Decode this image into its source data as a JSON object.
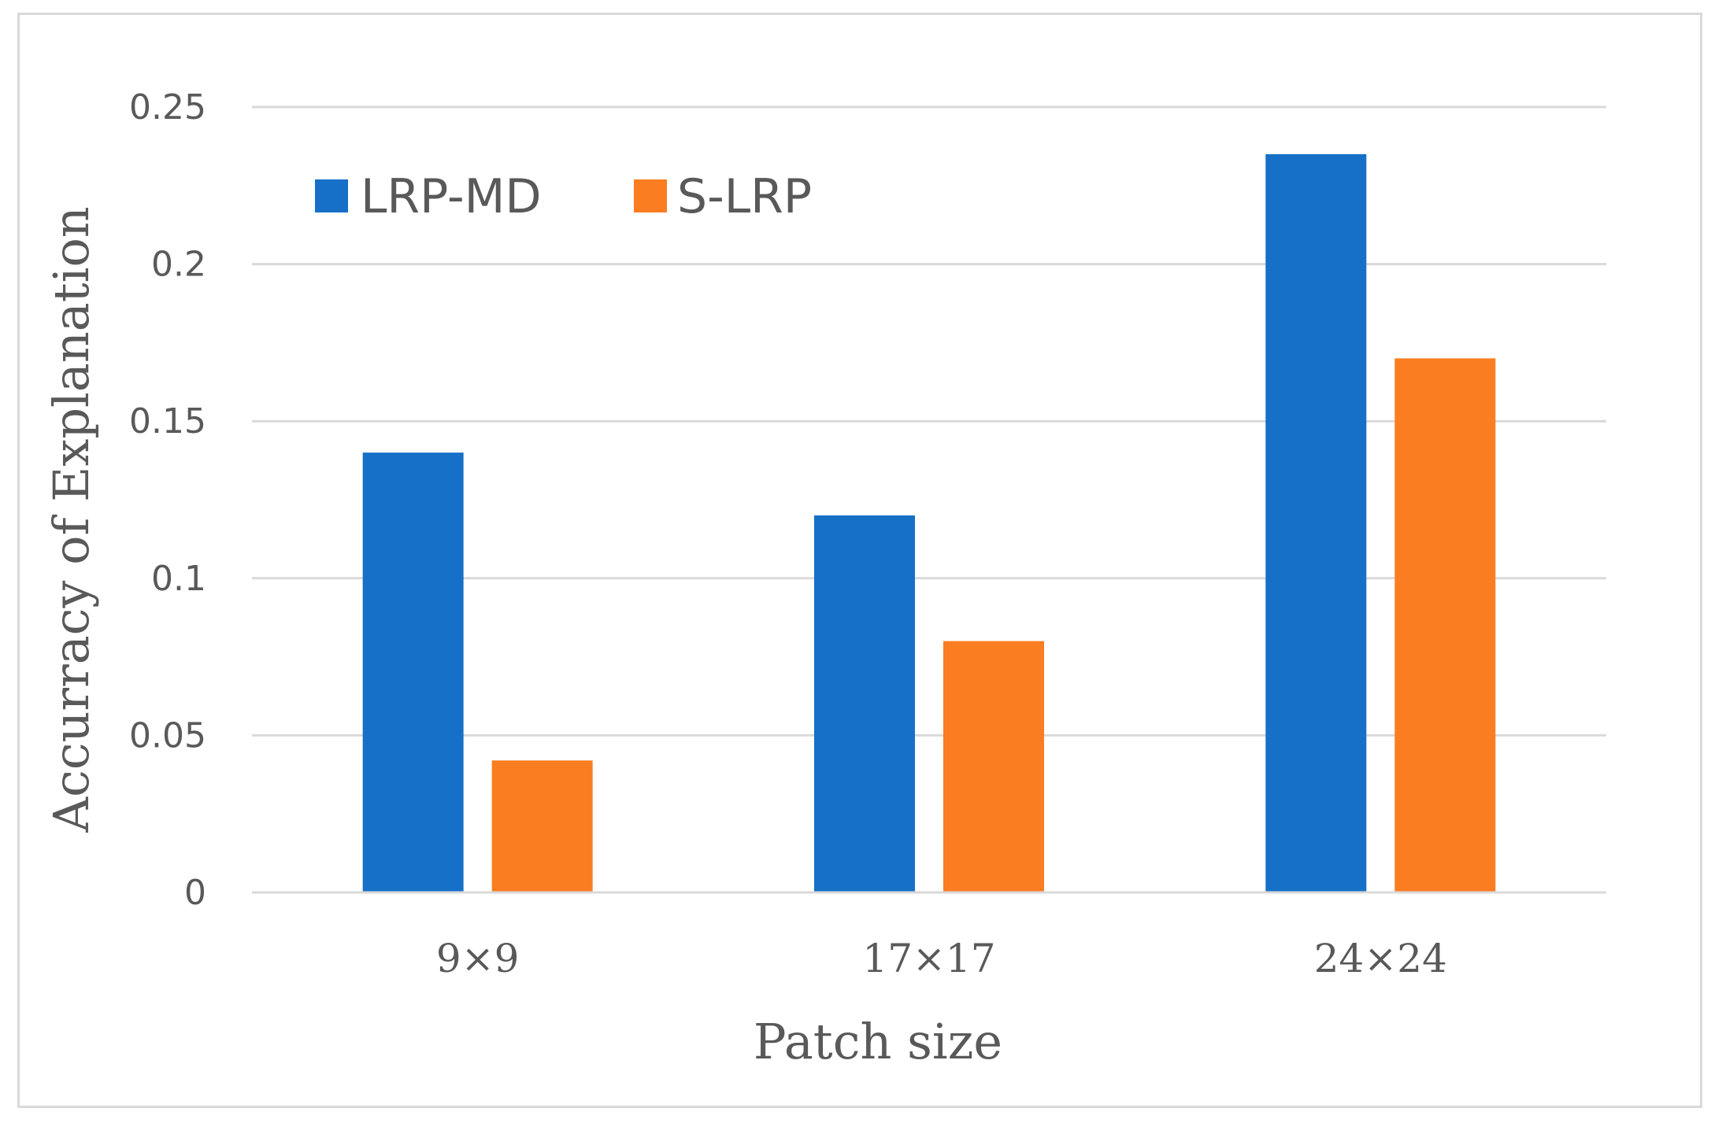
{
  "chart_data": {
    "type": "bar",
    "title": "",
    "xlabel": "Patch size",
    "ylabel": "Accurracy of Explanation",
    "categories": [
      "9×9",
      "17×17",
      "24×24"
    ],
    "series": [
      {
        "name": "LRP-MD",
        "color": "#1670c7",
        "values": [
          0.14,
          0.12,
          0.235
        ]
      },
      {
        "name": "S-LRP",
        "color": "#fb7d22",
        "values": [
          0.042,
          0.08,
          0.17
        ]
      }
    ],
    "ylim": [
      0,
      0.25
    ],
    "yticks": [
      0,
      0.05,
      0.1,
      0.15,
      0.2,
      0.25
    ],
    "ytick_labels": [
      "0",
      "0.05",
      "0.1",
      "0.15",
      "0.2",
      "0.25"
    ],
    "grid": true,
    "legend_position": "top-left"
  }
}
